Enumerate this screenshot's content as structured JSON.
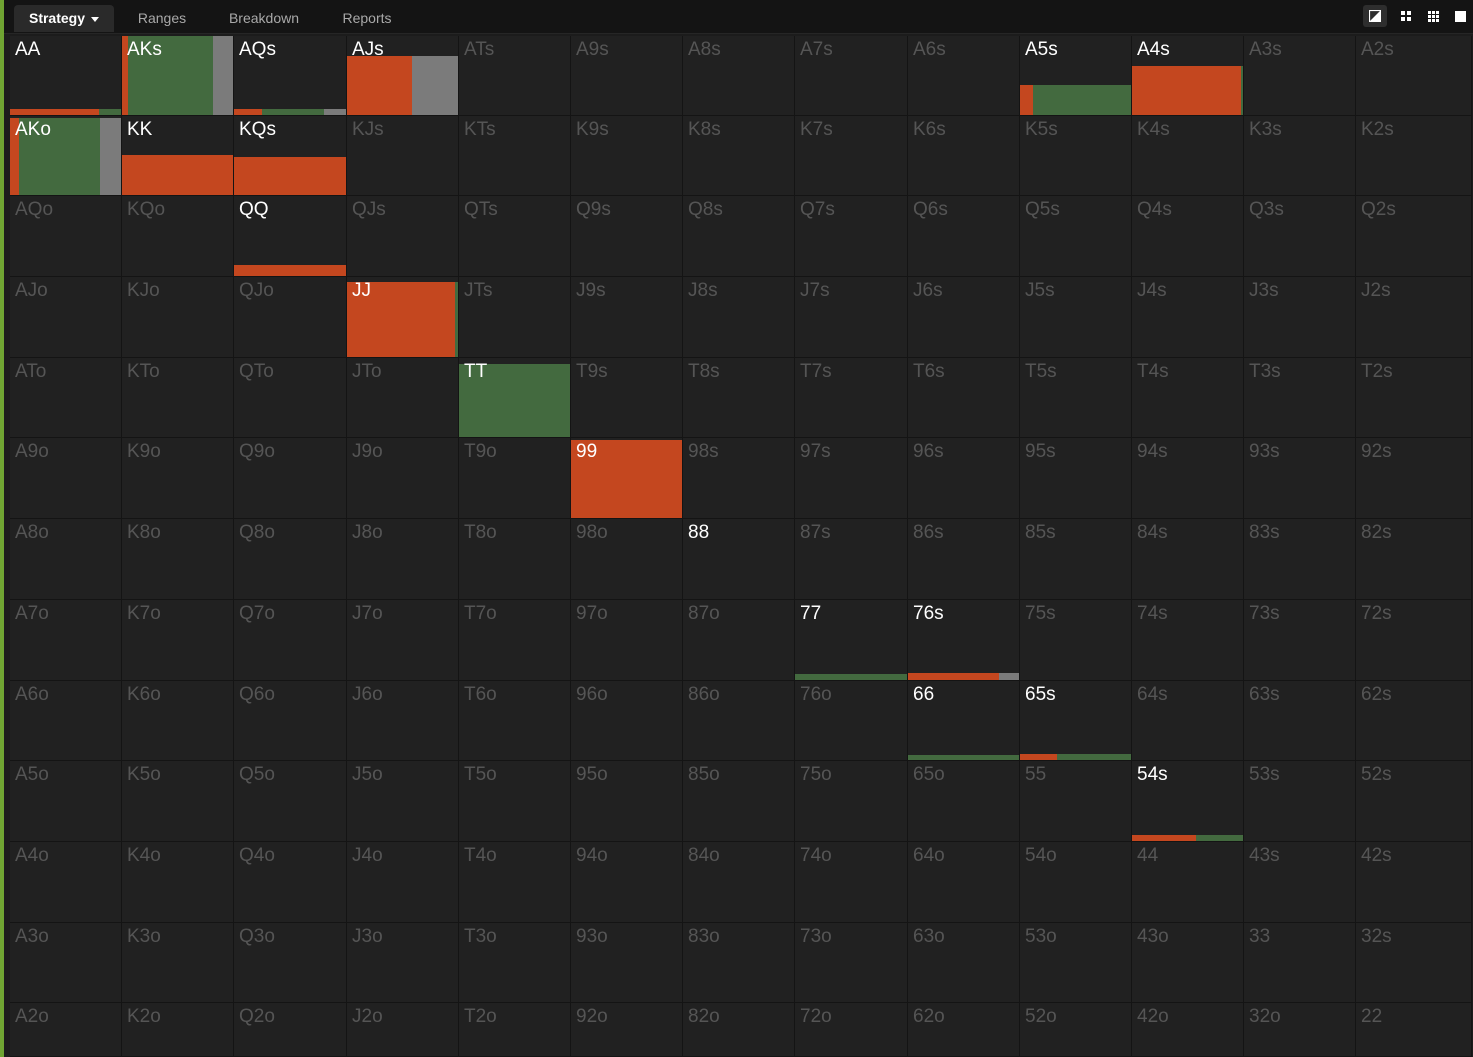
{
  "tabs": [
    {
      "id": "strategy",
      "label": "Strategy",
      "active": true,
      "has_dropdown": true
    },
    {
      "id": "ranges",
      "label": "Ranges",
      "active": false
    },
    {
      "id": "breakdown",
      "label": "Breakdown",
      "active": false
    },
    {
      "id": "reports",
      "label": "Reports",
      "active": false
    }
  ],
  "toolbar": {
    "buttons": [
      {
        "name": "toggle-layout-icon",
        "active": true
      },
      {
        "name": "compact-view-icon",
        "active": false
      },
      {
        "name": "grid-view-icon",
        "active": false
      },
      {
        "name": "single-view-icon",
        "active": false
      }
    ]
  },
  "colors": {
    "raise": "#c4471f",
    "call": "#436a3f",
    "fold": "#7b7b7b",
    "cell_background": "#212121",
    "label_in_range": "#ffffff",
    "label_out_of_range": "#555555",
    "accent": "#6fa332"
  },
  "hands": [
    [
      "AA",
      "AKs",
      "AQs",
      "AJs",
      "ATs",
      "A9s",
      "A8s",
      "A7s",
      "A6s",
      "A5s",
      "A4s",
      "A3s",
      "A2s"
    ],
    [
      "AKo",
      "KK",
      "KQs",
      "KJs",
      "KTs",
      "K9s",
      "K8s",
      "K7s",
      "K6s",
      "K5s",
      "K4s",
      "K3s",
      "K2s"
    ],
    [
      "AQo",
      "KQo",
      "QQ",
      "QJs",
      "QTs",
      "Q9s",
      "Q8s",
      "Q7s",
      "Q6s",
      "Q5s",
      "Q4s",
      "Q3s",
      "Q2s"
    ],
    [
      "AJo",
      "KJo",
      "QJo",
      "JJ",
      "JTs",
      "J9s",
      "J8s",
      "J7s",
      "J6s",
      "J5s",
      "J4s",
      "J3s",
      "J2s"
    ],
    [
      "ATo",
      "KTo",
      "QTo",
      "JTo",
      "TT",
      "T9s",
      "T8s",
      "T7s",
      "T6s",
      "T5s",
      "T4s",
      "T3s",
      "T2s"
    ],
    [
      "A9o",
      "K9o",
      "Q9o",
      "J9o",
      "T9o",
      "99",
      "98s",
      "97s",
      "96s",
      "95s",
      "94s",
      "93s",
      "92s"
    ],
    [
      "A8o",
      "K8o",
      "Q8o",
      "J8o",
      "T8o",
      "98o",
      "88",
      "87s",
      "86s",
      "85s",
      "84s",
      "83s",
      "82s"
    ],
    [
      "A7o",
      "K7o",
      "Q7o",
      "J7o",
      "T7o",
      "97o",
      "87o",
      "77",
      "76s",
      "75s",
      "74s",
      "73s",
      "72s"
    ],
    [
      "A6o",
      "K6o",
      "Q6o",
      "J6o",
      "T6o",
      "96o",
      "86o",
      "76o",
      "66",
      "65s",
      "64s",
      "63s",
      "62s"
    ],
    [
      "A5o",
      "K5o",
      "Q5o",
      "J5o",
      "T5o",
      "95o",
      "85o",
      "75o",
      "65o",
      "55",
      "54s",
      "53s",
      "52s"
    ],
    [
      "A4o",
      "K4o",
      "Q4o",
      "J4o",
      "T4o",
      "94o",
      "84o",
      "74o",
      "64o",
      "54o",
      "44",
      "43s",
      "42s"
    ],
    [
      "A3o",
      "K3o",
      "Q3o",
      "J3o",
      "T3o",
      "93o",
      "83o",
      "73o",
      "63o",
      "53o",
      "43o",
      "33",
      "32s"
    ],
    [
      "A2o",
      "K2o",
      "Q2o",
      "J2o",
      "T2o",
      "92o",
      "82o",
      "72o",
      "62o",
      "52o",
      "42o",
      "32o",
      "22"
    ]
  ],
  "strategy": {
    "AA": {
      "freq": 0.07,
      "raise": 0.8,
      "call": 0.2,
      "fold": 0.0
    },
    "AKs": {
      "freq": 1.0,
      "raise": 0.05,
      "call": 0.77,
      "fold": 0.18
    },
    "AQs": {
      "freq": 0.07,
      "raise": 0.25,
      "call": 0.55,
      "fold": 0.2
    },
    "AJs": {
      "freq": 0.75,
      "raise": 0.59,
      "call": 0.0,
      "fold": 0.41
    },
    "A5s": {
      "freq": 0.38,
      "raise": 0.12,
      "call": 0.88,
      "fold": 0.0
    },
    "A4s": {
      "freq": 0.62,
      "raise": 0.98,
      "call": 0.02,
      "fold": 0.0
    },
    "AKo": {
      "freq": 0.97,
      "raise": 0.08,
      "call": 0.73,
      "fold": 0.19
    },
    "KK": {
      "freq": 0.51,
      "raise": 1.0,
      "call": 0.0,
      "fold": 0.0
    },
    "KQs": {
      "freq": 0.48,
      "raise": 1.0,
      "call": 0.0,
      "fold": 0.0
    },
    "QQ": {
      "freq": 0.14,
      "raise": 1.0,
      "call": 0.0,
      "fold": 0.0
    },
    "JJ": {
      "freq": 0.94,
      "raise": 0.97,
      "call": 0.03,
      "fold": 0.0
    },
    "TT": {
      "freq": 0.92,
      "raise": 0.0,
      "call": 1.0,
      "fold": 0.0
    },
    "99": {
      "freq": 0.98,
      "raise": 1.0,
      "call": 0.0,
      "fold": 0.0
    },
    "88": {
      "freq": 0.0,
      "raise": 0.0,
      "call": 0.0,
      "fold": 0.0
    },
    "77": {
      "freq": 0.07,
      "raise": 0.0,
      "call": 1.0,
      "fold": 0.0
    },
    "76s": {
      "freq": 0.09,
      "raise": 0.82,
      "call": 0.0,
      "fold": 0.18
    },
    "66": {
      "freq": 0.06,
      "raise": 0.0,
      "call": 1.0,
      "fold": 0.0
    },
    "65s": {
      "freq": 0.08,
      "raise": 0.33,
      "call": 0.67,
      "fold": 0.0
    },
    "54s": {
      "freq": 0.08,
      "raise": 0.58,
      "call": 0.42,
      "fold": 0.0
    }
  }
}
